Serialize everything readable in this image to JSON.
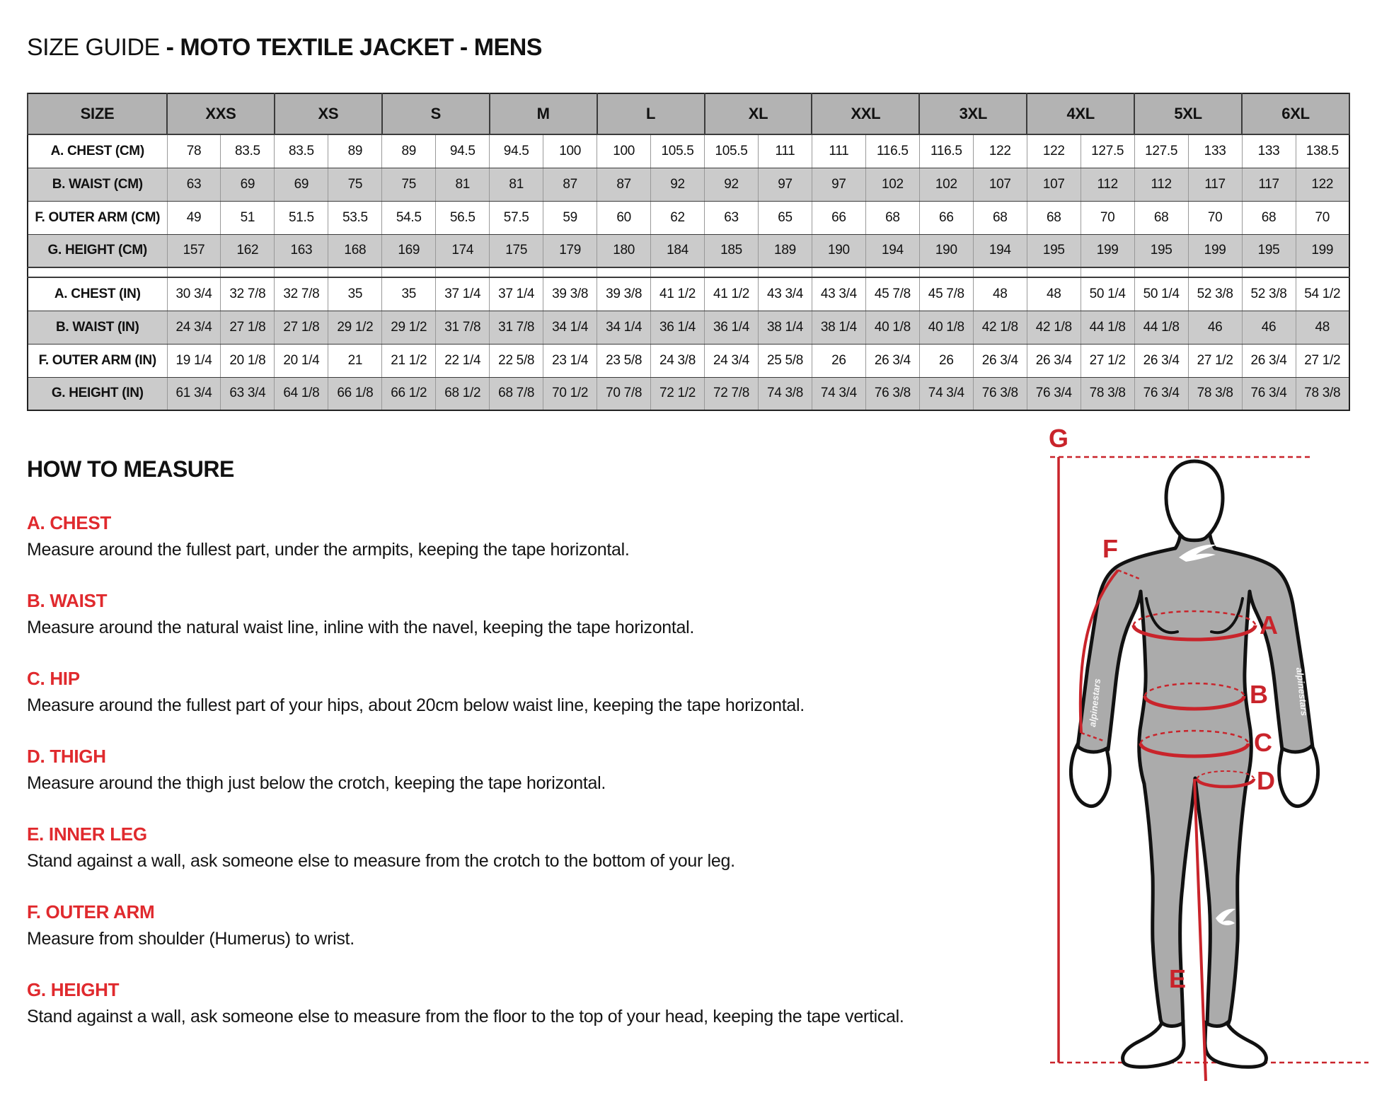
{
  "title": {
    "prefix": "SIZE GUIDE ",
    "bold_part": "- MOTO TEXTILE JACKET - MENS"
  },
  "colors": {
    "accent_red": "#e02a2e",
    "diagram_red": "#c9242b",
    "header_gray": "#b3b3b3",
    "row_gray": "#cbcbcb",
    "body_gray": "#ababab"
  },
  "table": {
    "corner_label": "SIZE",
    "size_columns": [
      "XXS",
      "XS",
      "S",
      "M",
      "L",
      "XL",
      "XXL",
      "3XL",
      "4XL",
      "5XL",
      "6XL"
    ],
    "rows": [
      {
        "label": "A. CHEST (CM)",
        "shade": "white",
        "values": [
          "78",
          "83.5",
          "83.5",
          "89",
          "89",
          "94.5",
          "94.5",
          "100",
          "100",
          "105.5",
          "105.5",
          "111",
          "111",
          "116.5",
          "116.5",
          "122",
          "122",
          "127.5",
          "127.5",
          "133",
          "133",
          "138.5"
        ]
      },
      {
        "label": "B. WAIST (CM)",
        "shade": "gray",
        "values": [
          "63",
          "69",
          "69",
          "75",
          "75",
          "81",
          "81",
          "87",
          "87",
          "92",
          "92",
          "97",
          "97",
          "102",
          "102",
          "107",
          "107",
          "112",
          "112",
          "117",
          "117",
          "122"
        ]
      },
      {
        "label": "F. OUTER ARM (CM)",
        "shade": "white",
        "values": [
          "49",
          "51",
          "51.5",
          "53.5",
          "54.5",
          "56.5",
          "57.5",
          "59",
          "60",
          "62",
          "63",
          "65",
          "66",
          "68",
          "66",
          "68",
          "68",
          "70",
          "68",
          "70",
          "68",
          "70"
        ]
      },
      {
        "label": "G. HEIGHT (CM)",
        "shade": "gray",
        "values": [
          "157",
          "162",
          "163",
          "168",
          "169",
          "174",
          "175",
          "179",
          "180",
          "184",
          "185",
          "189",
          "190",
          "194",
          "190",
          "194",
          "195",
          "199",
          "195",
          "199",
          "195",
          "199"
        ]
      },
      {
        "gap": true
      },
      {
        "label": "A. CHEST (IN)",
        "shade": "white",
        "values": [
          "30 3/4",
          "32 7/8",
          "32 7/8",
          "35",
          "35",
          "37 1/4",
          "37 1/4",
          "39 3/8",
          "39 3/8",
          "41 1/2",
          "41 1/2",
          "43 3/4",
          "43 3/4",
          "45 7/8",
          "45 7/8",
          "48",
          "48",
          "50 1/4",
          "50 1/4",
          "52 3/8",
          "52 3/8",
          "54 1/2"
        ]
      },
      {
        "label": "B. WAIST (IN)",
        "shade": "gray",
        "values": [
          "24 3/4",
          "27 1/8",
          "27 1/8",
          "29 1/2",
          "29 1/2",
          "31 7/8",
          "31 7/8",
          "34 1/4",
          "34 1/4",
          "36 1/4",
          "36 1/4",
          "38 1/4",
          "38 1/4",
          "40 1/8",
          "40 1/8",
          "42 1/8",
          "42 1/8",
          "44 1/8",
          "44 1/8",
          "46",
          "46",
          "48"
        ]
      },
      {
        "label": "F. OUTER ARM (IN)",
        "shade": "white",
        "values": [
          "19 1/4",
          "20 1/8",
          "20 1/4",
          "21",
          "21 1/2",
          "22 1/4",
          "22 5/8",
          "23 1/4",
          "23 5/8",
          "24 3/8",
          "24 3/4",
          "25 5/8",
          "26",
          "26 3/4",
          "26",
          "26 3/4",
          "26 3/4",
          "27 1/2",
          "26 3/4",
          "27 1/2",
          "26 3/4",
          "27 1/2"
        ]
      },
      {
        "label": "G. HEIGHT (IN)",
        "shade": "gray",
        "values": [
          "61 3/4",
          "63 3/4",
          "64 1/8",
          "66 1/8",
          "66 1/2",
          "68 1/2",
          "68 7/8",
          "70 1/2",
          "70 7/8",
          "72 1/2",
          "72 7/8",
          "74 3/8",
          "74 3/4",
          "76 3/8",
          "74 3/4",
          "76 3/8",
          "76 3/4",
          "78 3/8",
          "76 3/4",
          "78 3/8",
          "76 3/4",
          "78 3/8"
        ]
      }
    ]
  },
  "how_to_measure": {
    "heading": "HOW TO MEASURE",
    "sections": [
      {
        "title": "A. CHEST",
        "description": "Measure around the fullest part, under the armpits, keeping the tape horizontal."
      },
      {
        "title": "B. WAIST",
        "description": "Measure around the natural waist line, inline with the navel, keeping the tape horizontal."
      },
      {
        "title": "C. HIP",
        "description": "Measure around the fullest part of your hips, about 20cm below waist line, keeping the tape horizontal."
      },
      {
        "title": "D. THIGH",
        "description": "Measure around the thigh just below the crotch, keeping the tape horizontal."
      },
      {
        "title": "E. INNER LEG",
        "description": "Stand against a wall, ask someone else to measure from the crotch to the bottom of your leg."
      },
      {
        "title": "F. OUTER ARM",
        "description": "Measure from shoulder (Humerus) to wrist."
      },
      {
        "title": "G. HEIGHT",
        "description": "Stand against a wall, ask someone else to measure from the floor to the top of your head, keeping the tape vertical."
      }
    ]
  },
  "diagram": {
    "labels": {
      "g": "G",
      "f": "F",
      "a": "A",
      "b": "B",
      "c": "C",
      "d": "D",
      "e": "E"
    },
    "logo_text": "alpinestars"
  }
}
